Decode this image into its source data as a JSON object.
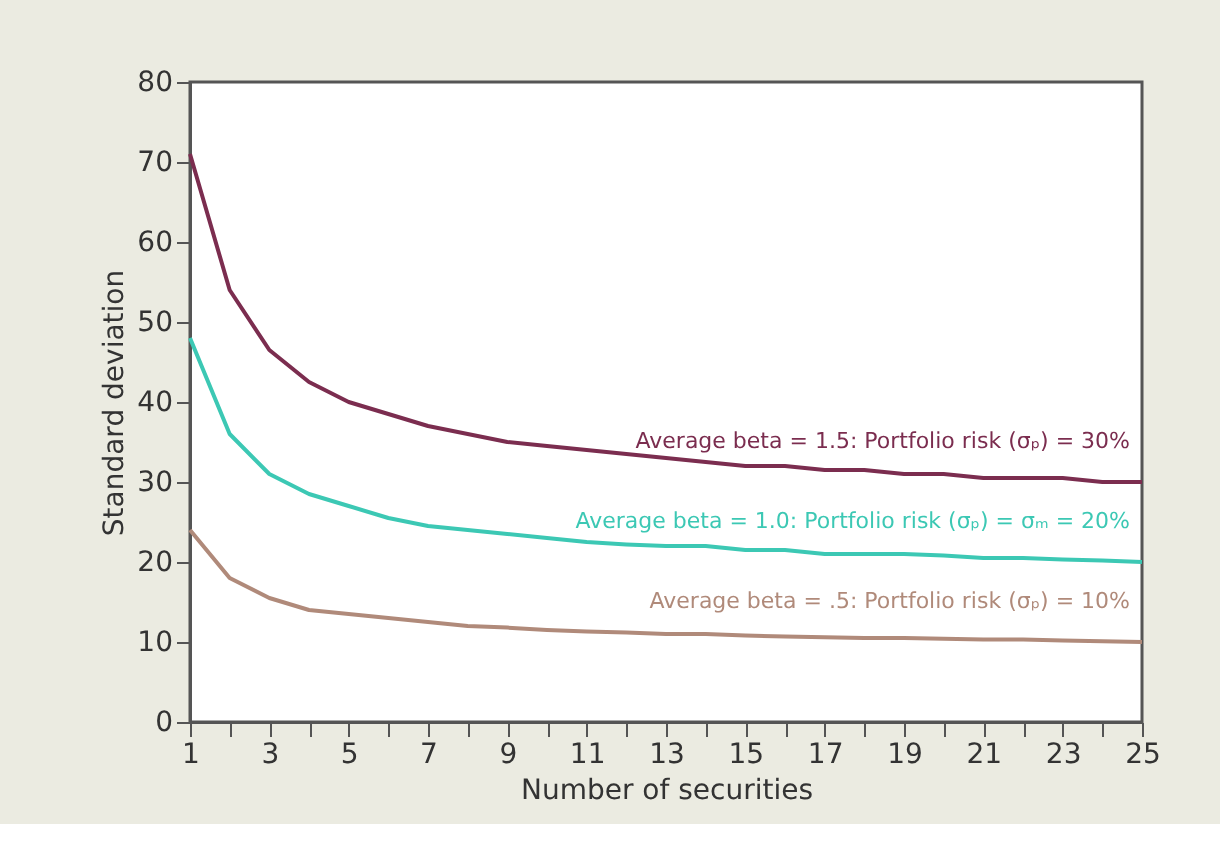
{
  "chart_data": {
    "type": "line",
    "xlabel": "Number of securities",
    "ylabel": "Standard deviation",
    "x": [
      1,
      2,
      3,
      4,
      5,
      6,
      7,
      8,
      9,
      10,
      11,
      12,
      13,
      14,
      15,
      16,
      17,
      18,
      19,
      20,
      21,
      22,
      23,
      24,
      25
    ],
    "series": [
      {
        "name": "Average beta = 1.5: Portfolio risk (σₚ) = 30%",
        "color": "#7b2d4f",
        "values": [
          71,
          54,
          46.5,
          42.5,
          40,
          38.5,
          37,
          36,
          35,
          34.5,
          34,
          33.5,
          33,
          32.5,
          32,
          32,
          31.5,
          31.5,
          31,
          31,
          30.5,
          30.5,
          30.5,
          30,
          30
        ]
      },
      {
        "name": "Average beta = 1.0: Portfolio risk (σₚ) = σₘ = 20%",
        "color": "#3cc8b4",
        "values": [
          48,
          36,
          31,
          28.5,
          27,
          25.5,
          24.5,
          24,
          23.5,
          23,
          22.5,
          22.2,
          22,
          22,
          21.5,
          21.5,
          21,
          21,
          21,
          20.8,
          20.5,
          20.5,
          20.3,
          20.2,
          20
        ]
      },
      {
        "name": "Average beta = .5: Portfolio risk (σₚ) = 10%",
        "color": "#b08a7a",
        "values": [
          24,
          18,
          15.5,
          14,
          13.5,
          13,
          12.5,
          12,
          11.8,
          11.5,
          11.3,
          11.2,
          11,
          11,
          10.8,
          10.7,
          10.6,
          10.5,
          10.5,
          10.4,
          10.3,
          10.3,
          10.2,
          10.1,
          10
        ]
      }
    ],
    "xlim": [
      1,
      25
    ],
    "xticks": [
      1,
      {
        "value": 2,
        "label": null
      },
      3,
      {
        "value": 4,
        "label": null
      },
      5,
      {
        "value": 6,
        "label": null
      },
      7,
      {
        "value": 8,
        "label": null
      },
      9,
      {
        "value": 10,
        "label": null
      },
      11,
      {
        "value": 12,
        "label": null
      },
      13,
      {
        "value": 14,
        "label": null
      },
      15,
      {
        "value": 16,
        "label": null
      },
      17,
      {
        "value": 18,
        "label": null
      },
      19,
      {
        "value": 20,
        "label": null
      },
      21,
      {
        "value": 22,
        "label": null
      },
      23,
      {
        "value": 24,
        "label": null
      },
      25
    ],
    "ylim": [
      0,
      80
    ],
    "yticks": [
      0,
      10,
      20,
      30,
      40,
      50,
      60,
      70,
      80
    ],
    "grid": false,
    "legend": false,
    "marker": "none",
    "line_style": "solid"
  }
}
